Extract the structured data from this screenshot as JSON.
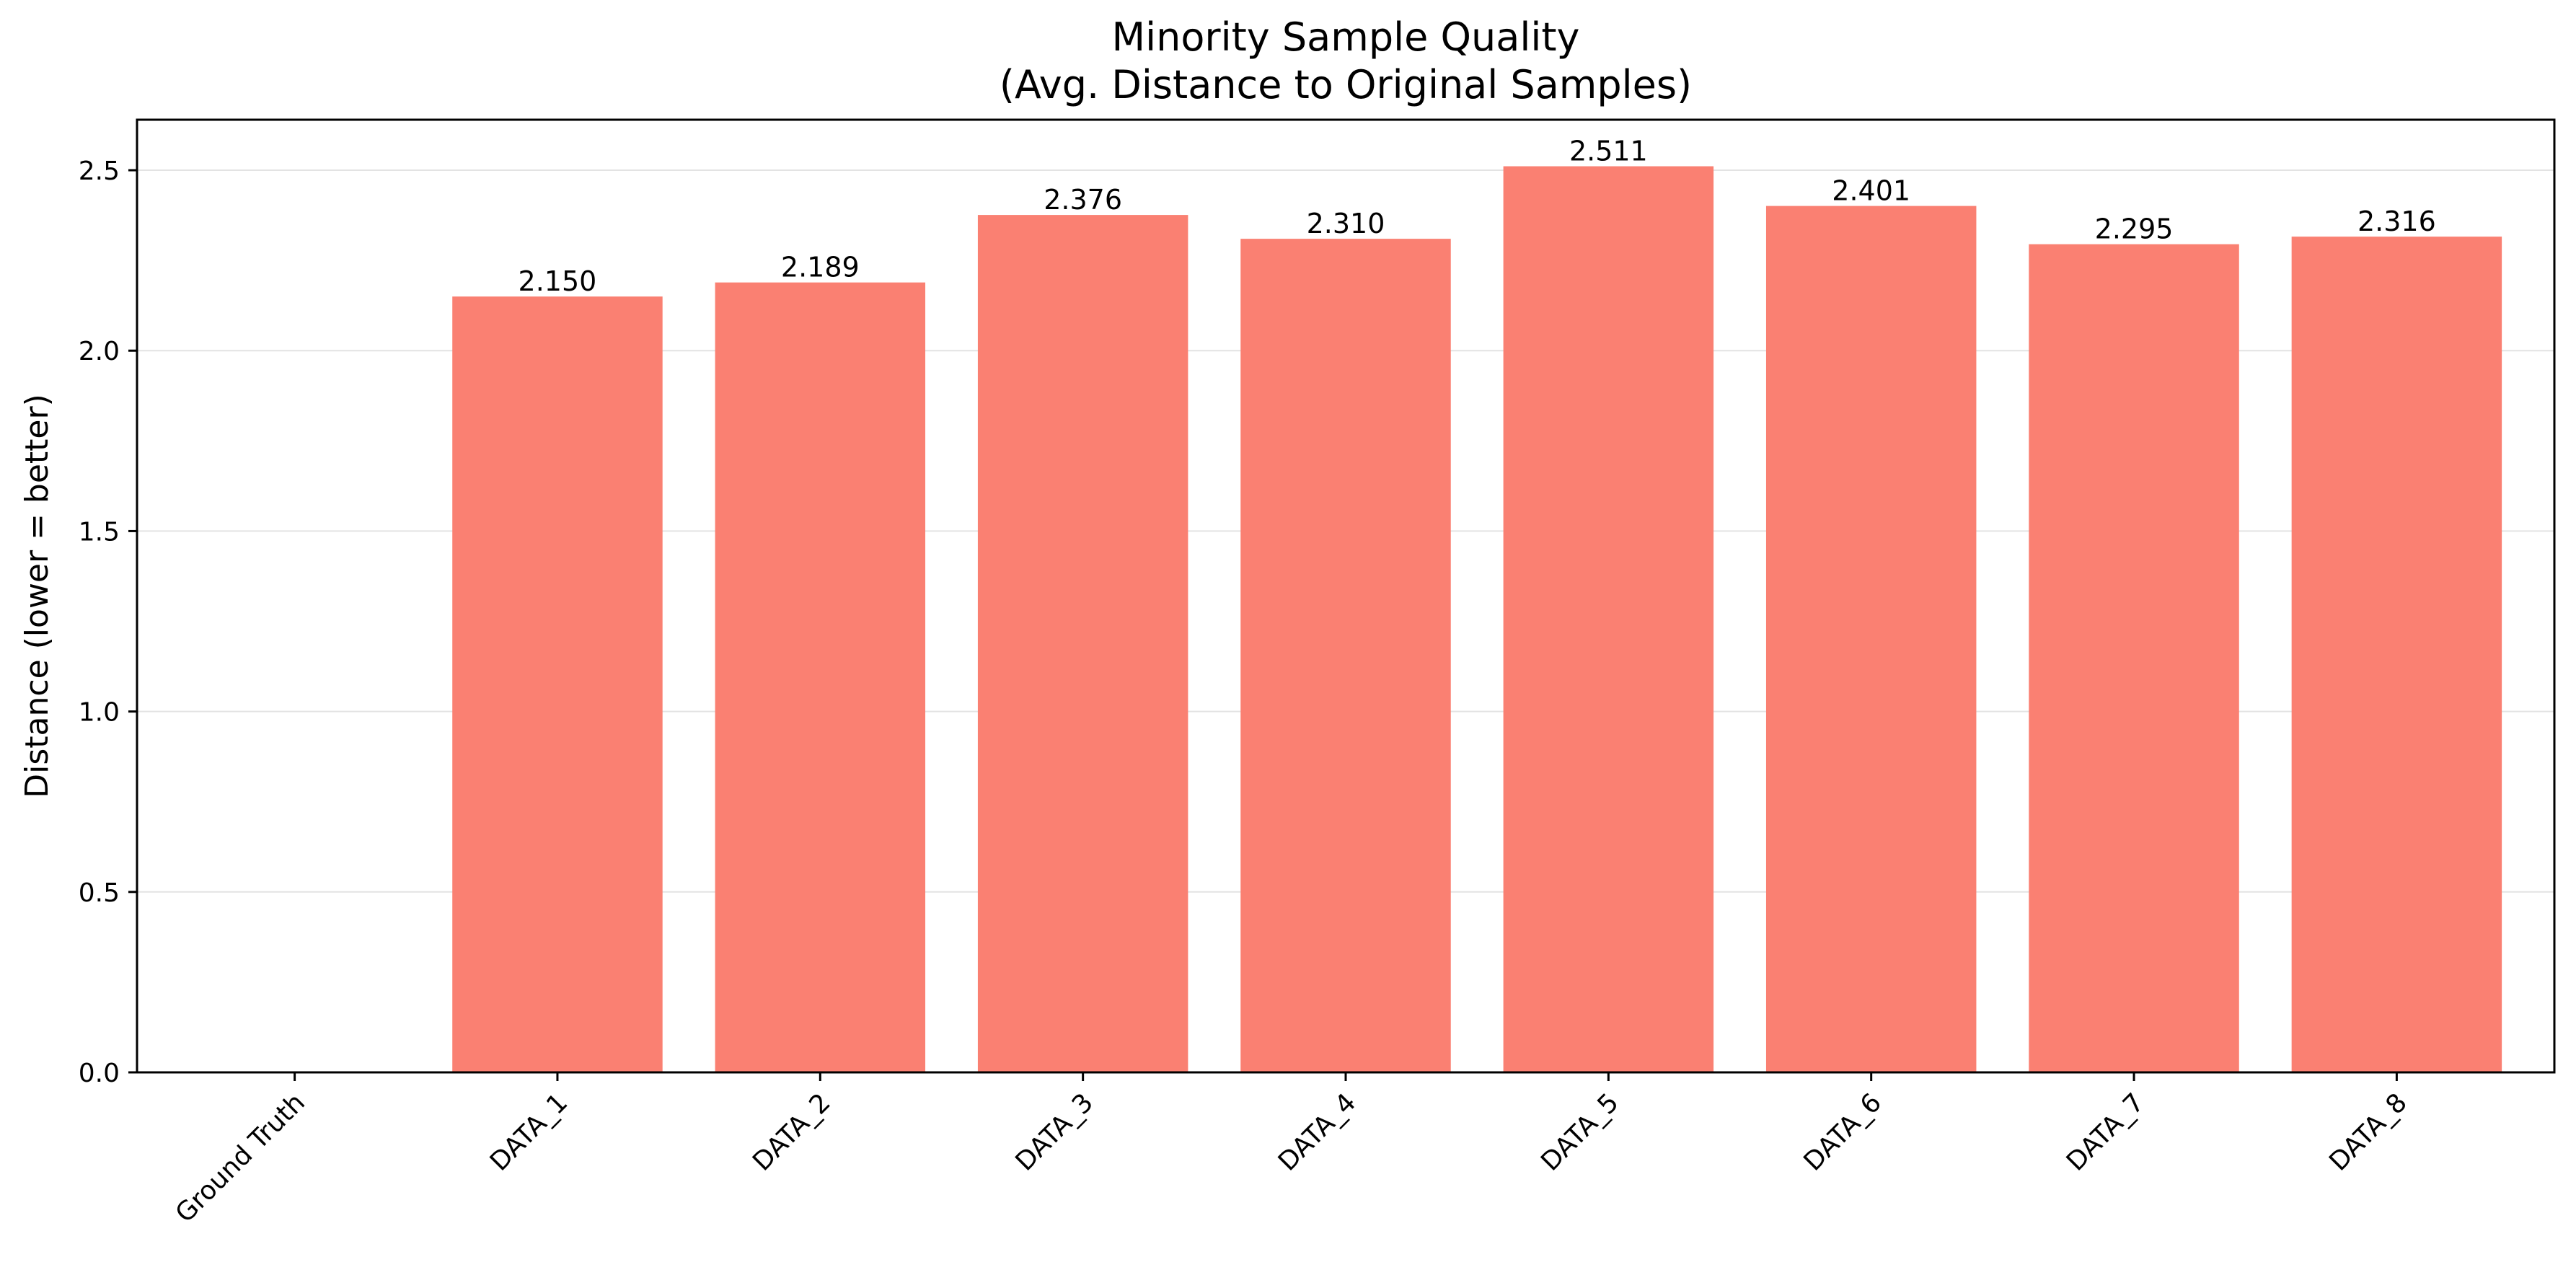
{
  "chart_data": {
    "type": "bar",
    "title": "Minority Sample Quality",
    "subtitle": "(Avg. Distance to Original Samples)",
    "xlabel": "",
    "ylabel": "Distance (lower = better)",
    "categories": [
      "Ground Truth",
      "DATA_1",
      "DATA_2",
      "DATA_3",
      "DATA_4",
      "DATA_5",
      "DATA_6",
      "DATA_7",
      "DATA_8"
    ],
    "values": [
      0,
      2.15,
      2.189,
      2.376,
      2.31,
      2.511,
      2.401,
      2.295,
      2.316
    ],
    "value_labels": [
      "",
      "2.150",
      "2.189",
      "2.376",
      "2.310",
      "2.511",
      "2.401",
      "2.295",
      "2.316"
    ],
    "ylim": [
      0,
      2.64
    ],
    "yticks": [
      0.0,
      0.5,
      1.0,
      1.5,
      2.0,
      2.5
    ],
    "ytick_labels": [
      "0.0",
      "0.5",
      "1.0",
      "1.5",
      "2.0",
      "2.5"
    ],
    "grid": "y",
    "legend": "none",
    "bar_color": "#fa8072"
  }
}
